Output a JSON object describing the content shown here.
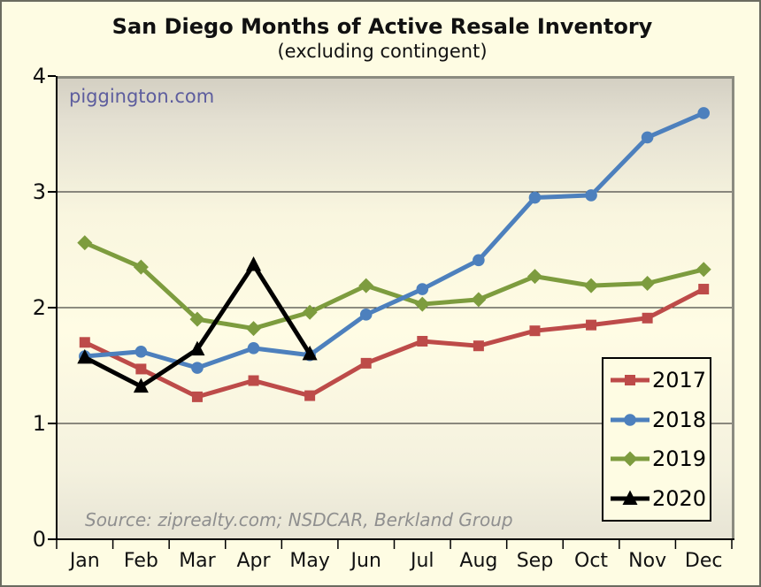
{
  "header": {
    "title": "San Diego Months of Active Resale Inventory",
    "subtitle": "(excluding contingent)"
  },
  "watermark": "piggington.com",
  "source_note": "Source: ziprealty.com; NSDCAR, Berkland Group",
  "colors": {
    "background": "#fefce3",
    "plot_gradient_top": "#d3cfc2",
    "plot_gradient_mid": "#fffce4",
    "plot_gradient_bottom": "#e7e4d5",
    "gridline": "#1c1c1c",
    "axis": "#000000",
    "plot_border": "#8b8b80",
    "watermark_text": "#5d5d9e",
    "source_text": "#8f8f8f",
    "series_2017": "#bd4b49",
    "series_2018": "#4d80bd",
    "series_2019": "#7d9c3e",
    "series_2020": "#000000"
  },
  "chart_data": {
    "type": "line",
    "title": "San Diego Months of Active Resale Inventory",
    "subtitle": "(excluding contingent)",
    "xlabel": "",
    "ylabel": "",
    "categories": [
      "Jan",
      "Feb",
      "Mar",
      "Apr",
      "May",
      "Jun",
      "Jul",
      "Aug",
      "Sep",
      "Oct",
      "Nov",
      "Dec"
    ],
    "series": [
      {
        "name": "2017",
        "color": "#bd4b49",
        "marker": "square",
        "values": [
          1.7,
          1.47,
          1.23,
          1.37,
          1.24,
          1.52,
          1.71,
          1.67,
          1.8,
          1.85,
          1.91,
          2.16
        ]
      },
      {
        "name": "2018",
        "color": "#4d80bd",
        "marker": "circle",
        "values": [
          1.58,
          1.62,
          1.48,
          1.65,
          1.59,
          1.94,
          2.16,
          2.41,
          2.95,
          2.97,
          3.47,
          3.68
        ]
      },
      {
        "name": "2019",
        "color": "#7d9c3e",
        "marker": "diamond",
        "values": [
          2.56,
          2.35,
          1.9,
          1.82,
          1.96,
          2.19,
          2.03,
          2.07,
          2.27,
          2.19,
          2.21,
          2.33
        ]
      },
      {
        "name": "2020",
        "color": "#000000",
        "marker": "triangle",
        "values": [
          1.57,
          1.32,
          1.64,
          2.37,
          1.6,
          null,
          null,
          null,
          null,
          null,
          null,
          null
        ]
      }
    ],
    "ylim": [
      0,
      4
    ],
    "yticks": [
      0,
      1,
      2,
      3,
      4
    ],
    "grid": true,
    "legend_position": "inside-bottom-right",
    "annotations": [
      "piggington.com",
      "Source: ziprealty.com; NSDCAR, Berkland Group"
    ]
  }
}
